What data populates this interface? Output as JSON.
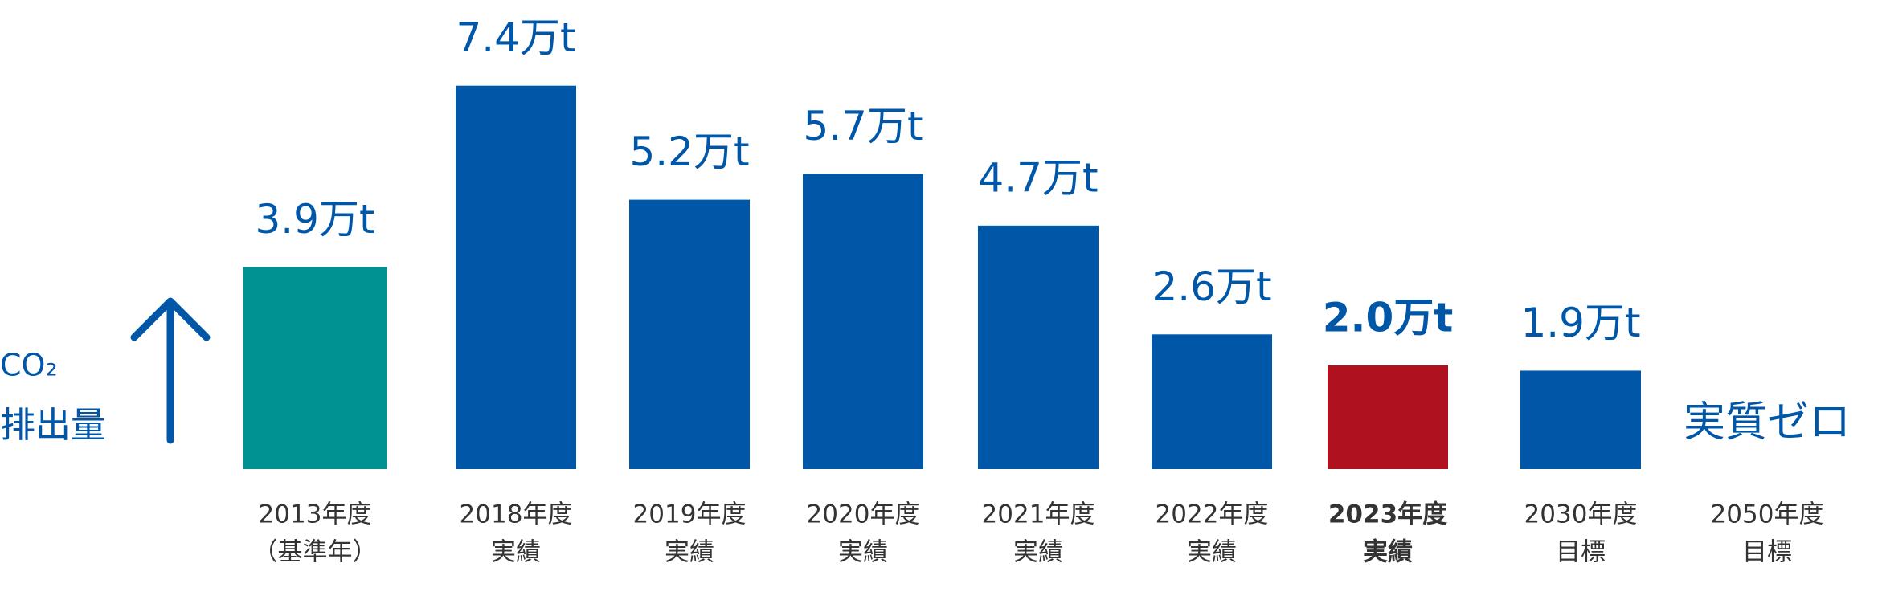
{
  "chart_data": {
    "type": "bar",
    "ylabel": [
      "CO₂",
      "排出量"
    ],
    "categories": [
      [
        "2013年度",
        "（基準年）"
      ],
      [
        "2018年度",
        "実績"
      ],
      [
        "2019年度",
        "実績"
      ],
      [
        "2020年度",
        "実績"
      ],
      [
        "2021年度",
        "実績"
      ],
      [
        "2022年度",
        "実績"
      ],
      [
        "2023年度",
        "実績"
      ],
      [
        "2030年度",
        "目標"
      ],
      [
        "2050年度",
        "目標"
      ]
    ],
    "values": [
      3.9,
      7.4,
      5.2,
      5.7,
      4.7,
      2.6,
      2.0,
      1.9,
      0
    ],
    "value_labels": [
      "3.9万t",
      "7.4万t",
      "5.2万t",
      "5.7万t",
      "4.7万t",
      "2.6万t",
      "2.0万t",
      "1.9万t",
      "実質ゼロ"
    ],
    "colors": [
      "#009193",
      "#0057a8",
      "#0057a8",
      "#0057a8",
      "#0057a8",
      "#0057a8",
      "#b0111e",
      "#0057a8",
      "#0057a8"
    ],
    "highlight": 6,
    "ylim": [
      0,
      8
    ]
  }
}
